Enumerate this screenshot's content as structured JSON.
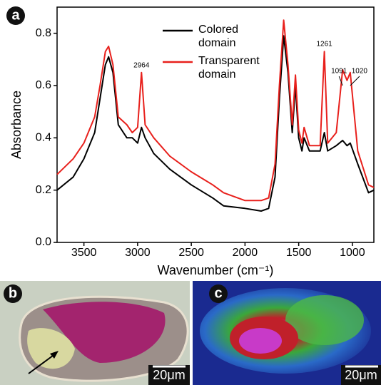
{
  "chart_data": {
    "type": "line",
    "panel_label": "a",
    "x_label": "Wavenumber (cm⁻¹)",
    "y_label": "Absorbance",
    "x": [
      3750,
      3600,
      3500,
      3400,
      3350,
      3300,
      3270,
      3230,
      3180,
      3100,
      3050,
      3000,
      2964,
      2930,
      2850,
      2700,
      2500,
      2300,
      2200,
      2000,
      1850,
      1780,
      1720,
      1680,
      1640,
      1600,
      1560,
      1530,
      1500,
      1470,
      1450,
      1400,
      1300,
      1261,
      1230,
      1150,
      1091,
      1050,
      1020,
      950,
      850,
      800
    ],
    "series": [
      {
        "name": "Colored domain",
        "color": "#000000",
        "values": [
          0.2,
          0.25,
          0.32,
          0.42,
          0.55,
          0.68,
          0.71,
          0.65,
          0.45,
          0.4,
          0.4,
          0.38,
          0.44,
          0.4,
          0.34,
          0.28,
          0.22,
          0.17,
          0.14,
          0.13,
          0.12,
          0.13,
          0.25,
          0.55,
          0.79,
          0.65,
          0.42,
          0.6,
          0.4,
          0.35,
          0.4,
          0.35,
          0.35,
          0.42,
          0.35,
          0.37,
          0.39,
          0.37,
          0.38,
          0.3,
          0.19,
          0.2
        ]
      },
      {
        "name": "Transparent domain",
        "color": "#e8201c",
        "values": [
          0.26,
          0.32,
          0.38,
          0.48,
          0.6,
          0.73,
          0.75,
          0.68,
          0.48,
          0.45,
          0.42,
          0.44,
          0.65,
          0.45,
          0.4,
          0.33,
          0.27,
          0.22,
          0.19,
          0.16,
          0.16,
          0.17,
          0.3,
          0.6,
          0.85,
          0.68,
          0.45,
          0.64,
          0.43,
          0.38,
          0.44,
          0.37,
          0.37,
          0.73,
          0.38,
          0.42,
          0.66,
          0.62,
          0.65,
          0.35,
          0.22,
          0.21
        ]
      }
    ],
    "annotations": [
      "2964",
      "1261",
      "1091",
      "1020"
    ],
    "xlim": [
      3750,
      800
    ],
    "xticks": [
      3500,
      3000,
      2500,
      2000,
      1500,
      1000
    ],
    "ylim": [
      0,
      0.9
    ],
    "yticks": [
      {
        "value": 0,
        "label": "0.0"
      },
      0.2,
      0.4,
      0.6,
      0.8
    ]
  },
  "panels": [
    {
      "letter": "b",
      "scale_bar": "20μm"
    },
    {
      "letter": "c",
      "scale_bar": "20μm"
    }
  ]
}
